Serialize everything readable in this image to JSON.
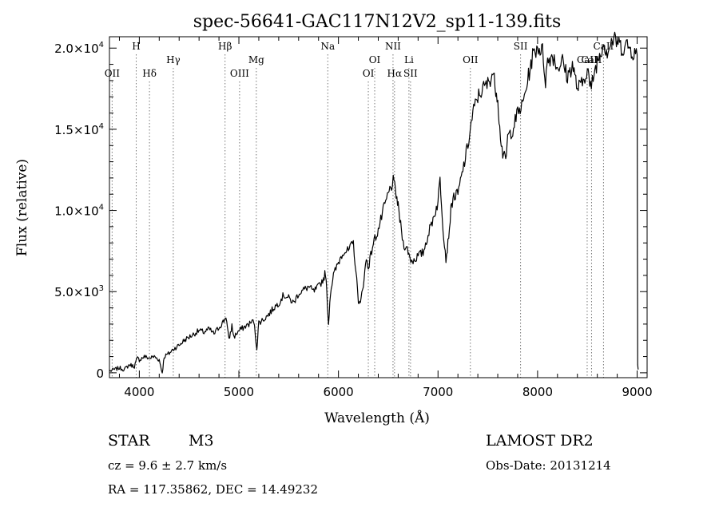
{
  "chart_data": {
    "type": "line",
    "title": "spec-56641-GAC117N12V2_sp11-139.fits",
    "xlabel": "Wavelength (Å)",
    "ylabel": "Flux (relative)",
    "xlim": [
      3700,
      9100
    ],
    "ylim": [
      -300,
      20700
    ],
    "x_ticks": [
      4000,
      5000,
      6000,
      7000,
      8000,
      9000
    ],
    "x_tick_labels": [
      "4000",
      "5000",
      "6000",
      "7000",
      "8000",
      "9000"
    ],
    "y_ticks": [
      0,
      5000,
      10000,
      15000,
      20000
    ],
    "y_tick_labels": [
      {
        "mant": "0",
        "exp": ""
      },
      {
        "mant": "5.0×10",
        "exp": "3"
      },
      {
        "mant": "1.0×10",
        "exp": "4"
      },
      {
        "mant": "1.5×10",
        "exp": "4"
      },
      {
        "mant": "2.0×10",
        "exp": "4"
      }
    ],
    "grid": false,
    "line_color": "#000000",
    "annotation_lines": [
      {
        "label": "OII",
        "x": 3727,
        "row": 3
      },
      {
        "label": "H",
        "x": 3969,
        "row": 1
      },
      {
        "label": "Hδ",
        "x": 4102,
        "row": 3
      },
      {
        "label": "Hγ",
        "x": 4341,
        "row": 2
      },
      {
        "label": "Hβ",
        "x": 4861,
        "row": 1
      },
      {
        "label": "OIII",
        "x": 5007,
        "row": 3
      },
      {
        "label": "Mg",
        "x": 5175,
        "row": 2
      },
      {
        "label": "Na",
        "x": 5893,
        "row": 1
      },
      {
        "label": "OI",
        "x": 6300,
        "row": 3
      },
      {
        "label": "OI",
        "x": 6364,
        "row": 2
      },
      {
        "label": "NII",
        "x": 6548,
        "row": 1
      },
      {
        "label": "Hα",
        "x": 6563,
        "row": 3
      },
      {
        "label": "Li",
        "x": 6708,
        "row": 2
      },
      {
        "label": "SII",
        "x": 6724,
        "row": 3
      },
      {
        "label": "OII",
        "x": 7325,
        "row": 2
      },
      {
        "label": "SII",
        "x": 7829,
        "row": 1
      },
      {
        "label": "CaII",
        "x": 8498,
        "row": 2
      },
      {
        "label": "CaII",
        "x": 8542,
        "row": 2
      },
      {
        "label": "CaII",
        "x": 8662,
        "row": 1
      }
    ],
    "series": [
      {
        "x": [
          3700,
          3750,
          3800,
          3850,
          3900,
          3950,
          3980,
          4000,
          4050,
          4100,
          4150,
          4200,
          4230,
          4250,
          4300,
          4350,
          4400,
          4450,
          4500,
          4550,
          4600,
          4650,
          4700,
          4750,
          4800,
          4850,
          4870,
          4900,
          4930,
          4950,
          5000,
          5050,
          5100,
          5150,
          5180,
          5200,
          5250,
          5300,
          5350,
          5400,
          5450,
          5500,
          5550,
          5600,
          5650,
          5700,
          5750,
          5800,
          5850,
          5870,
          5890,
          5900,
          5920,
          5950,
          6000,
          6050,
          6100,
          6150,
          6200,
          6220,
          6250,
          6280,
          6300,
          6350,
          6400,
          6450,
          6500,
          6550,
          6580,
          6600,
          6650,
          6700,
          6720,
          6750,
          6800,
          6850,
          6900,
          6950,
          7000,
          7020,
          7050,
          7080,
          7100,
          7130,
          7150,
          7200,
          7250,
          7300,
          7350,
          7400,
          7450,
          7500,
          7550,
          7580,
          7600,
          7620,
          7650,
          7680,
          7700,
          7750,
          7800,
          7850,
          7900,
          7950,
          8000,
          8050,
          8080,
          8100,
          8150,
          8200,
          8250,
          8300,
          8350,
          8400,
          8450,
          8500,
          8540,
          8550,
          8600,
          8660,
          8700,
          8750,
          8800,
          8850,
          8900,
          8950,
          9000,
          9005,
          9010
        ],
        "values": [
          100,
          200,
          300,
          200,
          500,
          400,
          900,
          800,
          1000,
          900,
          1000,
          800,
          0,
          1000,
          1200,
          1500,
          1700,
          2000,
          2200,
          2400,
          2600,
          2500,
          2700,
          2400,
          2800,
          3200,
          3500,
          2000,
          2900,
          2200,
          2600,
          2800,
          3000,
          3200,
          1500,
          3100,
          3300,
          3600,
          4000,
          4300,
          4800,
          4600,
          4300,
          4900,
          5100,
          5300,
          5000,
          5300,
          5800,
          6200,
          4200,
          3000,
          5000,
          6000,
          6800,
          7500,
          7500,
          8000,
          4500,
          4200,
          5500,
          7000,
          6500,
          8000,
          8800,
          10000,
          11000,
          11800,
          11000,
          10200,
          8000,
          7500,
          7000,
          6900,
          7200,
          7400,
          8500,
          9500,
          10500,
          12000,
          9000,
          7000,
          8000,
          10000,
          10800,
          11000,
          12500,
          14000,
          16000,
          17000,
          17500,
          17800,
          18500,
          17500,
          17000,
          15000,
          13500,
          13000,
          14500,
          15000,
          16000,
          16500,
          18000,
          19500,
          20100,
          19800,
          18000,
          19200,
          19600,
          18800,
          19200,
          18200,
          19000,
          17500,
          17800,
          18800,
          17200,
          18000,
          19200,
          20300,
          19800,
          20500,
          20400,
          20000,
          20200,
          19800,
          19600,
          500,
          200
        ]
      }
    ]
  },
  "info": {
    "object_class": "STAR",
    "subclass": "M3",
    "cz": "cz = 9.6 ± 2.7 km/s",
    "coords": "RA = 117.35862, DEC =  14.49232",
    "survey": "LAMOST DR2",
    "obs_date": "Obs-Date: 20131214"
  }
}
